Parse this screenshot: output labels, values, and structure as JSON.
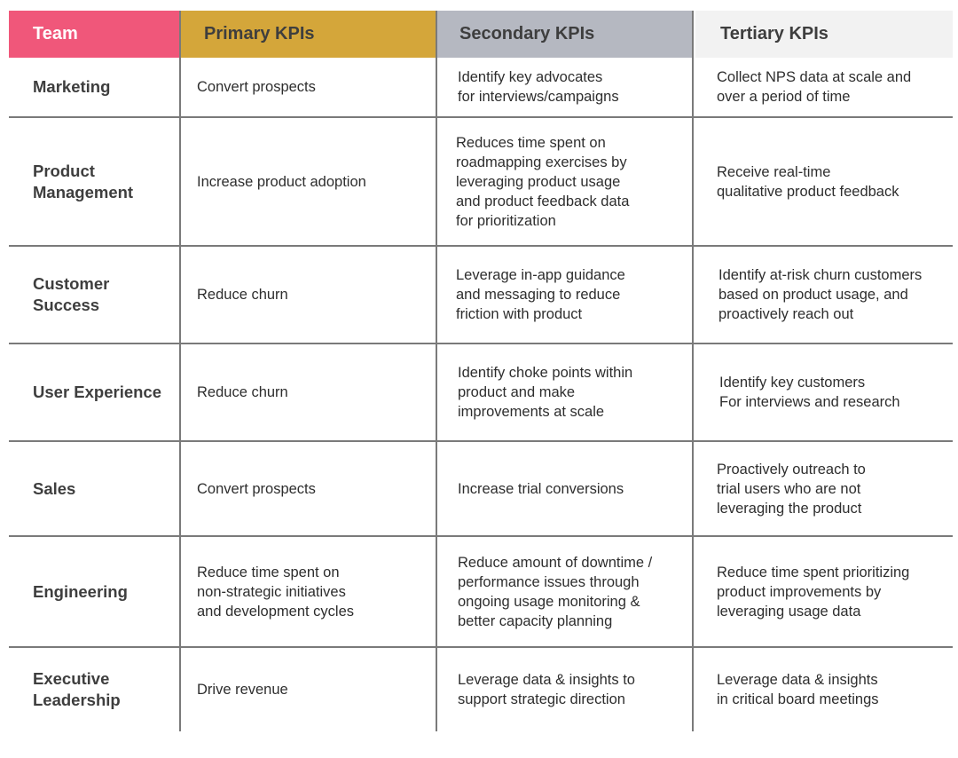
{
  "headers": {
    "team": "Team",
    "primary": "Primary KPIs",
    "secondary": "Secondary KPIs",
    "tertiary": "Tertiary KPIs"
  },
  "rows": [
    {
      "team": "Marketing",
      "primary": "Convert prospects",
      "secondary": "Identify key advocates\nfor interviews/campaigns",
      "tertiary": "Collect NPS data at scale and\nover a period of time"
    },
    {
      "team": "Product\nManagement",
      "primary": "Increase product adoption",
      "secondary": "Reduces time spent on\nroadmapping exercises by\nleveraging product usage\nand product feedback data\nfor prioritization",
      "tertiary": "Receive real-time\nqualitative product feedback"
    },
    {
      "team": "Customer\nSuccess",
      "primary": "Reduce churn",
      "secondary": "Leverage in-app guidance\nand messaging to reduce\nfriction with product",
      "tertiary": "Identify at-risk churn customers\nbased on product usage, and\nproactively reach out"
    },
    {
      "team": "User Experience",
      "primary": "Reduce churn",
      "secondary": "Identify choke points within\nproduct and make\nimprovements at scale",
      "tertiary": "Identify key customers\nFor interviews and research"
    },
    {
      "team": "Sales",
      "primary": "Convert prospects",
      "secondary": "Increase trial conversions",
      "tertiary": "Proactively outreach to\ntrial users who are not\nleveraging the product"
    },
    {
      "team": "Engineering",
      "primary": "Reduce time spent on\nnon-strategic initiatives\nand development cycles",
      "secondary": "Reduce amount of downtime /\nperformance issues through\nongoing usage monitoring &\nbetter capacity planning",
      "tertiary": "Reduce time spent prioritizing\nproduct improvements by\nleveraging usage data"
    },
    {
      "team": "Executive\nLeadership",
      "primary": "Drive revenue",
      "secondary": "Leverage data & insights to\nsupport strategic direction",
      "tertiary": "Leverage data & insights\nin critical board meetings"
    }
  ],
  "colors": {
    "team_header": "#f0577a",
    "primary_header": "#d4a63a",
    "secondary_header": "#b5b8c1",
    "tertiary_header": "#f2f2f2",
    "grid": "#7a7a7a"
  }
}
